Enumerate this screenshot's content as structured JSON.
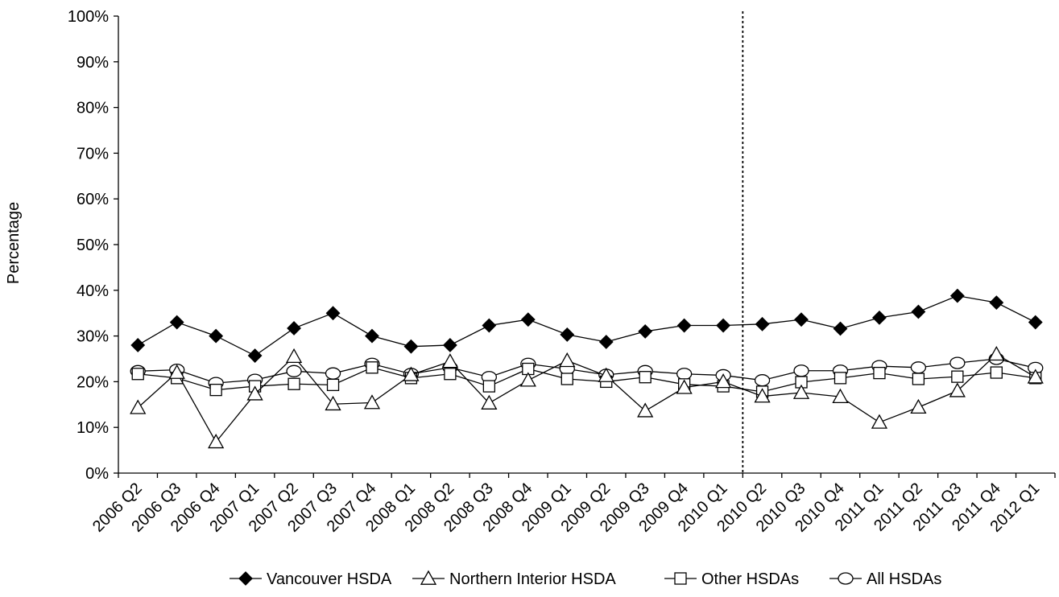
{
  "chart_data": {
    "type": "line",
    "title": "",
    "xlabel": "",
    "ylabel": "Percentage",
    "ylim": [
      0,
      100
    ],
    "yticks": [
      "0%",
      "10%",
      "20%",
      "30%",
      "40%",
      "50%",
      "60%",
      "70%",
      "80%",
      "90%",
      "100%"
    ],
    "grid": false,
    "legend_position": "bottom",
    "categories": [
      "2006 Q2",
      "2006 Q3",
      "2006 Q4",
      "2007 Q1",
      "2007 Q2",
      "2007 Q3",
      "2007 Q4",
      "2008 Q1",
      "2008 Q2",
      "2008 Q3",
      "2008 Q4",
      "2009 Q1",
      "2009 Q2",
      "2009 Q3",
      "2009 Q4",
      "2010 Q1",
      "2010 Q2",
      "2010 Q3",
      "2010 Q4",
      "2011 Q1",
      "2011 Q2",
      "2011 Q3",
      "2011 Q4",
      "2012 Q1"
    ],
    "reference_line_after_category": "2010 Q1",
    "series": [
      {
        "name": "Vancouver HSDA",
        "marker": "diamond-filled",
        "values": [
          28,
          33,
          30,
          25.7,
          31.7,
          35,
          30,
          27.7,
          28,
          32.3,
          33.6,
          30.3,
          28.7,
          31,
          32.3,
          32.3,
          32.6,
          33.6,
          31.6,
          34,
          35.3,
          38.8,
          37.3,
          33
        ]
      },
      {
        "name": "Northern Interior HSDA",
        "marker": "triangle-open",
        "values": [
          14.3,
          22,
          6.8,
          17.3,
          25.5,
          15.1,
          15.4,
          21.5,
          24.4,
          15.3,
          20.3,
          24.6,
          21.3,
          13.6,
          18.7,
          20,
          16.8,
          17.6,
          16.7,
          11.1,
          14.4,
          18,
          26,
          21
        ]
      },
      {
        "name": "Other HSDAs",
        "marker": "square-open",
        "values": [
          21.7,
          20.8,
          18.2,
          19,
          19.5,
          19.3,
          23.1,
          20.8,
          21.7,
          19,
          22.8,
          20.6,
          20,
          21,
          19.4,
          19,
          17.8,
          19.9,
          20.8,
          21.9,
          20.6,
          21.1,
          22,
          20.8
        ]
      },
      {
        "name": "All HSDAs",
        "marker": "circle-open",
        "values": [
          22.3,
          22.6,
          19.7,
          20.4,
          22.3,
          21.8,
          23.9,
          21.7,
          23.1,
          21,
          23.9,
          22.8,
          21.5,
          22.3,
          21.7,
          21.4,
          20.3,
          22.4,
          22.4,
          23.4,
          23.1,
          24.1,
          25,
          23
        ]
      }
    ],
    "colors": {
      "line": "#000000",
      "background": "#ffffff"
    }
  }
}
